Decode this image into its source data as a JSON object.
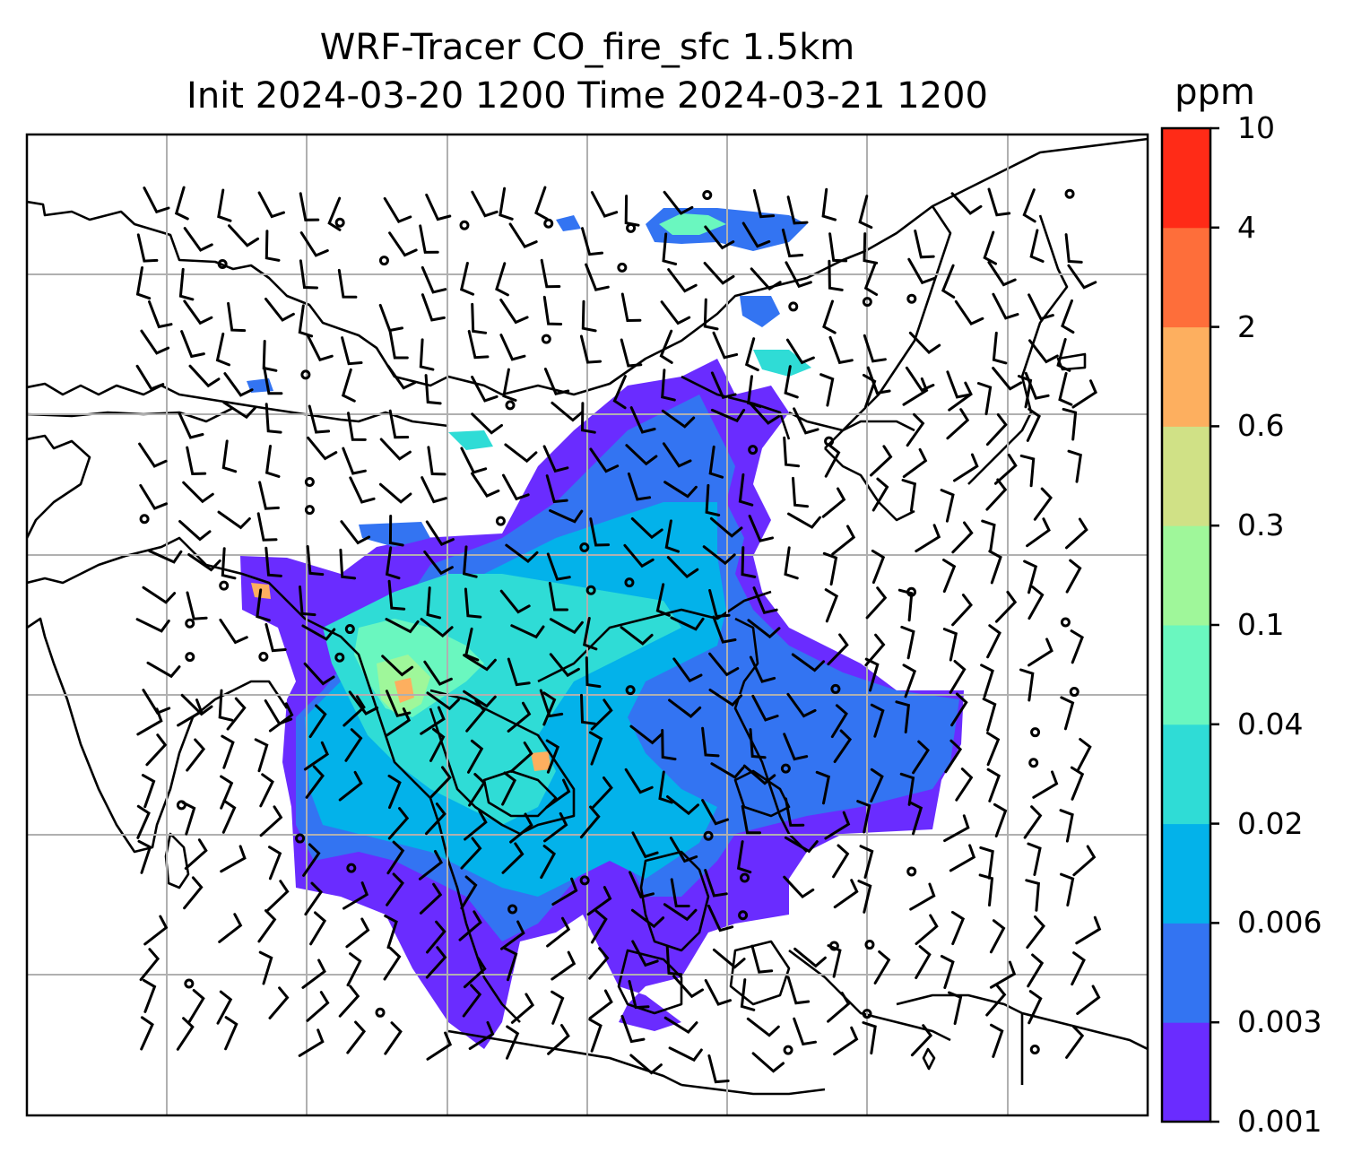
{
  "title": {
    "line1": "WRF-Tracer CO_fire_sfc 1.5km",
    "line2": "Init 2024-03-20 1200 Time 2024-03-21 1200"
  },
  "colorbar": {
    "unit": "ppm",
    "levels": [
      "0.001",
      "0.003",
      "0.006",
      "0.02",
      "0.04",
      "0.1",
      "0.3",
      "0.6",
      "2",
      "4",
      "10"
    ],
    "colors": [
      "#6a2cff",
      "#3374f2",
      "#03b2ea",
      "#2fdcd6",
      "#6af7bf",
      "#9ff79a",
      "#d0e186",
      "#fdaf5f",
      "#fe6e3a",
      "#ff2b17"
    ]
  },
  "map": {
    "gridlines": true,
    "wind_barbs": true,
    "plume_colors": {
      "outer": "#6a2cff",
      "low": "#3374f2",
      "mid": "#03b2ea",
      "elevated": "#2fdcd6",
      "high": "#6af7bf",
      "hotspot": "#9ff79a",
      "peak": "#fdaf5f"
    }
  }
}
